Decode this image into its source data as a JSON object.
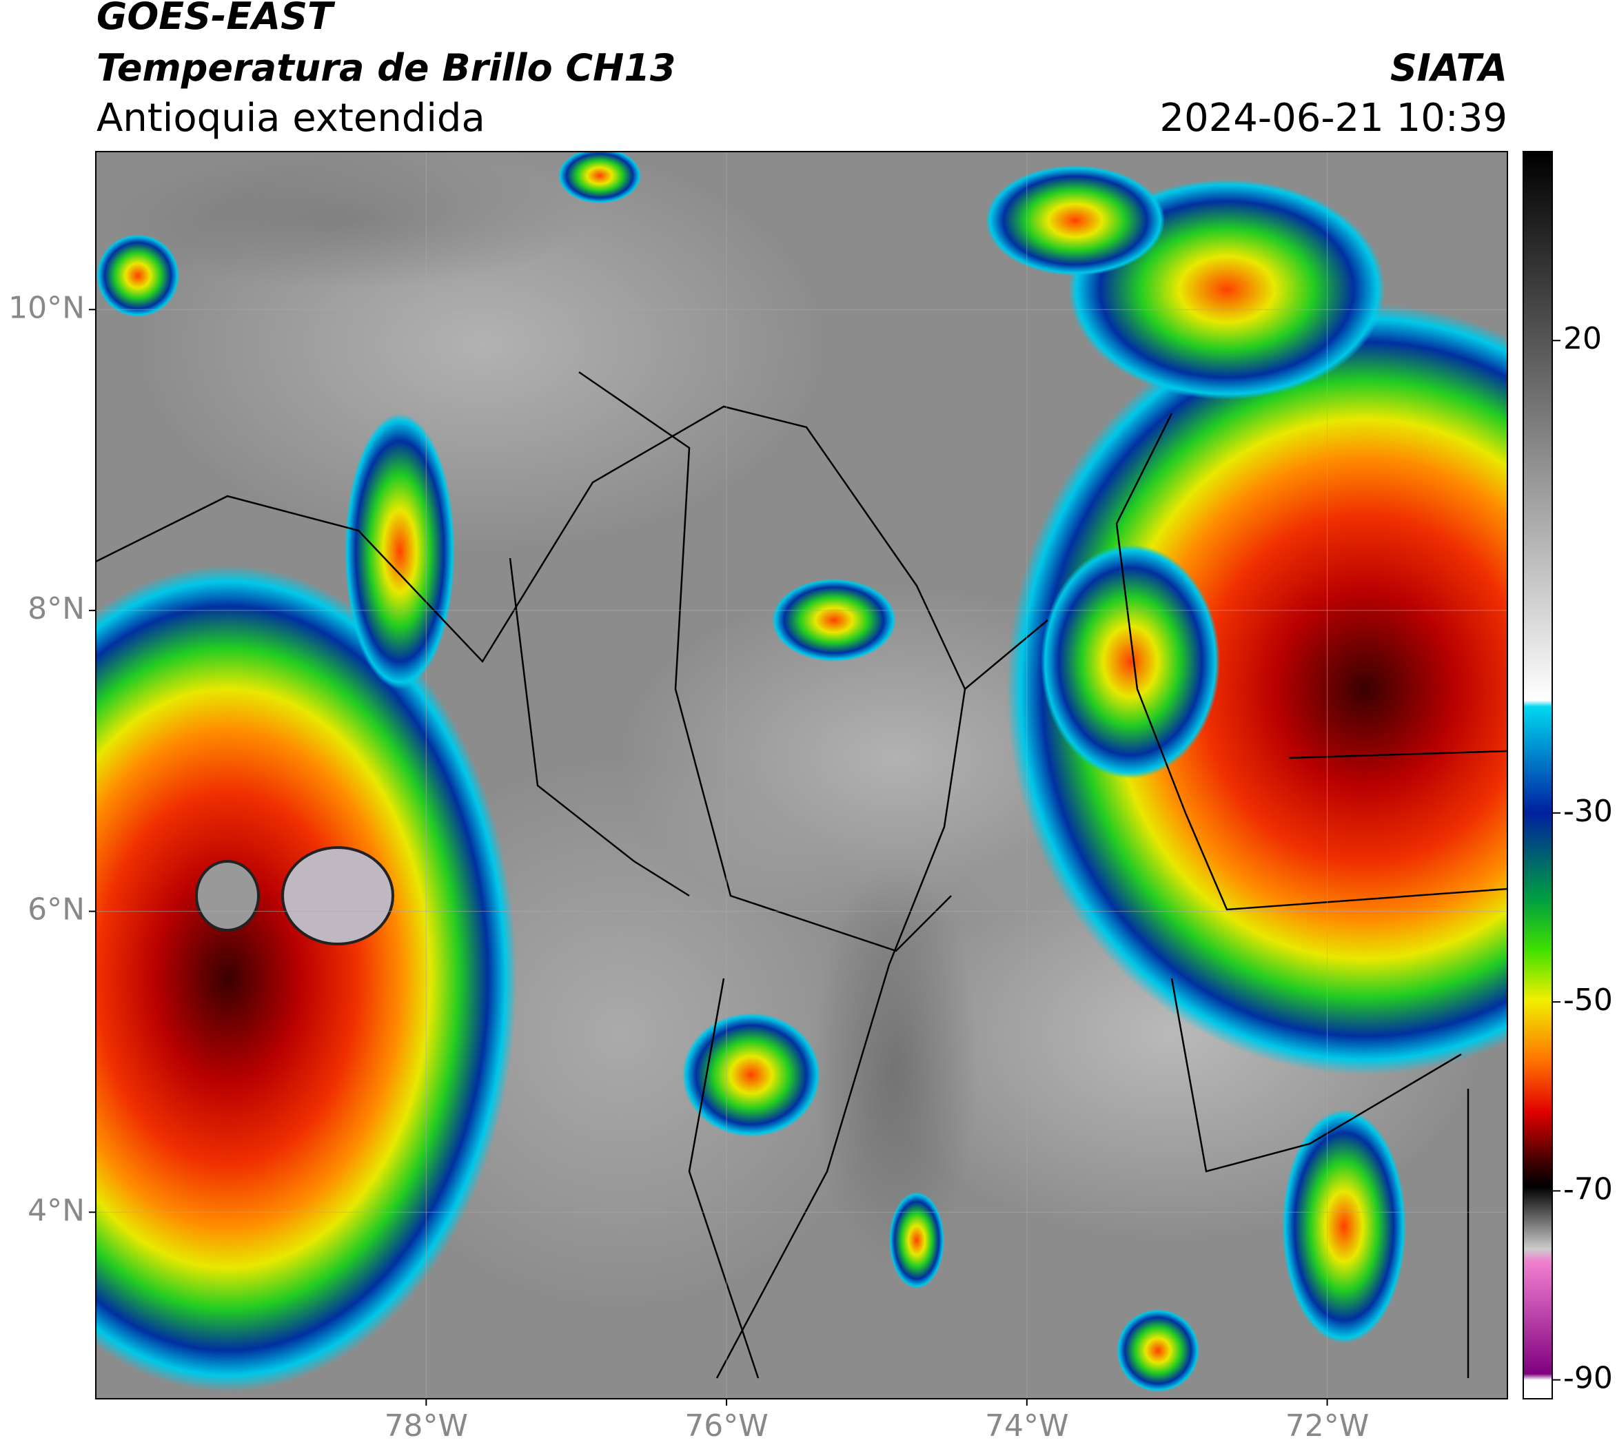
{
  "header": {
    "satellite": "GOES-EAST",
    "product": "Temperatura de Brillo CH13",
    "region": "Antioquia extendida",
    "source": "SIATA",
    "datetime": "2024-06-21 10:39"
  },
  "map": {
    "xlim": [
      -80.2,
      -70.8
    ],
    "ylim": [
      2.76,
      11.05
    ],
    "xticks": [
      {
        "value": -78,
        "label": "78°W"
      },
      {
        "value": -76,
        "label": "76°W"
      },
      {
        "value": -74,
        "label": "74°W"
      },
      {
        "value": -72,
        "label": "72°W"
      }
    ],
    "yticks": [
      {
        "value": 4,
        "label": "4°N"
      },
      {
        "value": 6,
        "label": "6°N"
      },
      {
        "value": 8,
        "label": "8°N"
      },
      {
        "value": 10,
        "label": "10°N"
      }
    ]
  },
  "colorbar": {
    "lim": [
      -92,
      40
    ],
    "ticks": [
      20,
      -30,
      -50,
      -70,
      -90
    ]
  }
}
